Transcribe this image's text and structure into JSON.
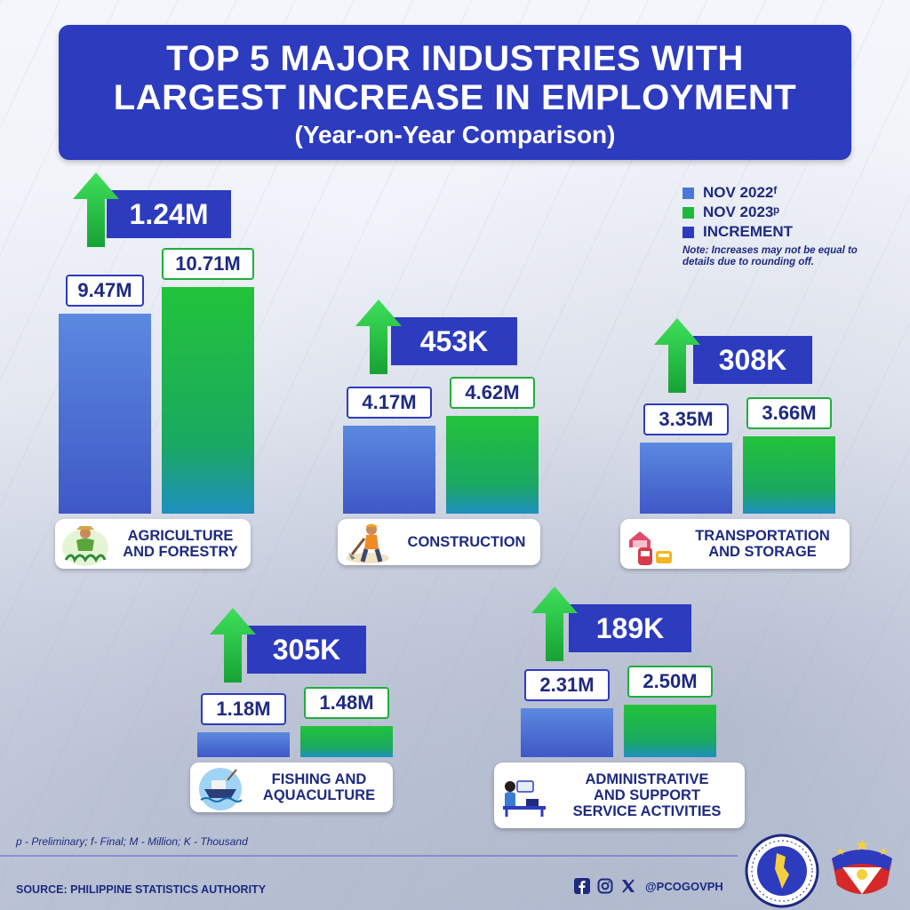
{
  "title": {
    "line1": "TOP 5 MAJOR INDUSTRIES WITH",
    "line2": "LARGEST INCREASE IN EMPLOYMENT",
    "subtitle": "(Year-on-Year Comparison)"
  },
  "legend": {
    "items": [
      {
        "label": "NOV 2022ᶠ",
        "color": "#4a77d8"
      },
      {
        "label": "NOV 2023ᵖ",
        "color": "#1fb93a"
      },
      {
        "label": "INCREMENT",
        "color": "#2d3bbf"
      }
    ],
    "note": "Note: Increases may not be equal to details due to rounding off."
  },
  "chart_data": {
    "type": "bar",
    "title": "TOP 5 MAJOR INDUSTRIES WITH LARGEST INCREASE IN EMPLOYMENT",
    "subtitle": "(Year-on-Year Comparison)",
    "categories": [
      "AGRICULTURE AND FORESTRY",
      "CONSTRUCTION",
      "TRANSPORTATION AND STORAGE",
      "FISHING AND AQUACULTURE",
      "ADMINISTRATIVE AND SUPPORT SERVICE ACTIVITIES"
    ],
    "category_labels": [
      "AGRICULTURE\nAND FORESTRY",
      "CONSTRUCTION",
      "TRANSPORTATION\nAND STORAGE",
      "FISHING AND\nAQUACULTURE",
      "ADMINISTRATIVE\nAND SUPPORT\nSERVICE ACTIVITIES"
    ],
    "category_icons": [
      "farmer-icon",
      "construction-worker-icon",
      "transport-icon",
      "fishing-boat-icon",
      "office-worker-icon"
    ],
    "units": "millions",
    "series": [
      {
        "name": "NOV 2022ᶠ",
        "values": [
          9.47,
          4.17,
          3.35,
          1.18,
          2.31
        ],
        "labels": [
          "9.47M",
          "4.17M",
          "3.35M",
          "1.18M",
          "2.31M"
        ]
      },
      {
        "name": "NOV 2023ᵖ",
        "values": [
          10.71,
          4.62,
          3.66,
          1.48,
          2.5
        ],
        "labels": [
          "10.71M",
          "4.62M",
          "3.66M",
          "1.48M",
          "2.50M"
        ]
      },
      {
        "name": "INCREMENT",
        "values": [
          1.24,
          0.453,
          0.308,
          0.305,
          0.189
        ],
        "labels": [
          "1.24M",
          "453K",
          "308K",
          "305K",
          "189K"
        ]
      }
    ]
  },
  "footnote": "p - Preliminary; f- Final; M - Million; K - Thousand",
  "source": "SOURCE: PHILIPPINE STATISTICS AUTHORITY",
  "social": {
    "handle": "@PCOGOVPH",
    "icons": [
      "facebook-icon",
      "instagram-icon",
      "x-icon"
    ]
  },
  "seal_text": "PRESIDENTIAL COMMUNICATIONS OFFICE · PHILIPPINES"
}
